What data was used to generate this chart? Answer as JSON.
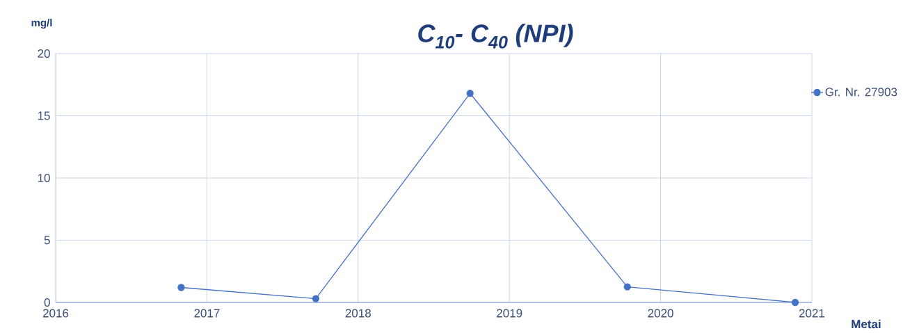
{
  "chart_data": {
    "type": "line",
    "title": "C$_{10}$- C$_{40}$ (NPI)",
    "ylabel": "mg/l",
    "xlabel": "Metai",
    "x": [
      2016.83,
      2017.72,
      2018.74,
      2019.78,
      2020.89
    ],
    "series": [
      {
        "name": "Gr. Nr. 27903",
        "color": "#4472c4",
        "values": [
          1.2,
          0.3,
          16.8,
          1.25,
          0
        ]
      }
    ],
    "xlim": [
      2016,
      2021
    ],
    "xticks": [
      2016,
      2017,
      2018,
      2019,
      2020,
      2021
    ],
    "ylim": [
      0,
      20
    ],
    "yticks": [
      0,
      5,
      10,
      15,
      20
    ],
    "grid": true,
    "legend": "right",
    "marker": "circle",
    "line_style": "solid"
  }
}
